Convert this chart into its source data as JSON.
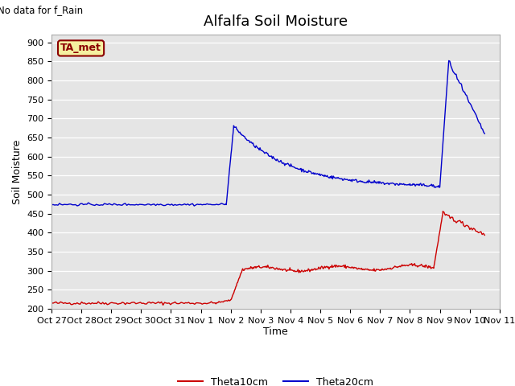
{
  "title": "Alfalfa Soil Moisture",
  "xlabel": "Time",
  "ylabel": "Soil Moisture",
  "top_left_text": "No data for f_Rain",
  "legend_box_text": "TA_met",
  "ylim": [
    200,
    920
  ],
  "yticks": [
    200,
    250,
    300,
    350,
    400,
    450,
    500,
    550,
    600,
    650,
    700,
    750,
    800,
    850,
    900
  ],
  "xtick_labels": [
    "Oct 27",
    "Oct 28",
    "Oct 29",
    "Oct 30",
    "Oct 31",
    "Nov 1",
    "Nov 2",
    "Nov 3",
    "Nov 4",
    "Nov 5",
    "Nov 6",
    "Nov 7",
    "Nov 8",
    "Nov 9",
    "Nov 10",
    "Nov 11"
  ],
  "background_color": "#e5e5e5",
  "line_color_red": "#cc0000",
  "line_color_blue": "#0000cc",
  "legend_label_red": "Theta10cm",
  "legend_label_blue": "Theta20cm",
  "title_fontsize": 13,
  "axis_label_fontsize": 9,
  "tick_fontsize": 8
}
